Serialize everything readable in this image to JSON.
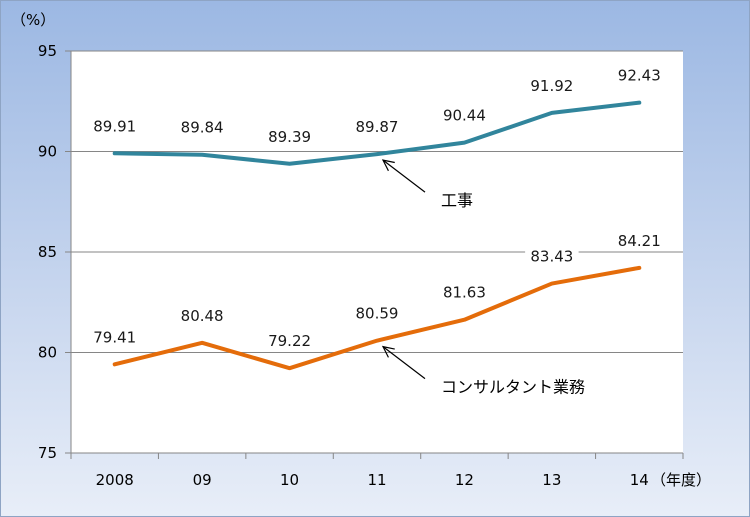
{
  "chart_data": {
    "type": "line",
    "categories": [
      "2008",
      "09",
      "10",
      "11",
      "12",
      "13",
      "14"
    ],
    "series": [
      {
        "name": "工事",
        "values": [
          89.91,
          89.84,
          89.39,
          89.87,
          90.44,
          91.92,
          92.43
        ],
        "color": "#31859c"
      },
      {
        "name": "コンサルタント業務",
        "values": [
          79.41,
          80.48,
          79.22,
          80.59,
          81.63,
          83.43,
          84.21
        ],
        "color": "#e46c0a"
      }
    ],
    "data_labels": [
      [
        "89.91",
        "89.84",
        "89.39",
        "89.87",
        "90.44",
        "91.92",
        "92.43"
      ],
      [
        "79.41",
        "80.48",
        "79.22",
        "80.59",
        "81.63",
        "83.43",
        "84.21"
      ]
    ],
    "ylim": [
      75,
      95
    ],
    "yticks": [
      "95",
      "90",
      "85",
      "80",
      "75"
    ],
    "ylabel": "（%）",
    "xlabel": "（年度）",
    "grid": true,
    "annotations": [
      {
        "text": "工事",
        "series": 0,
        "point_index": 3
      },
      {
        "text": "コンサルタント業務",
        "series": 1,
        "point_index": 3
      }
    ]
  }
}
